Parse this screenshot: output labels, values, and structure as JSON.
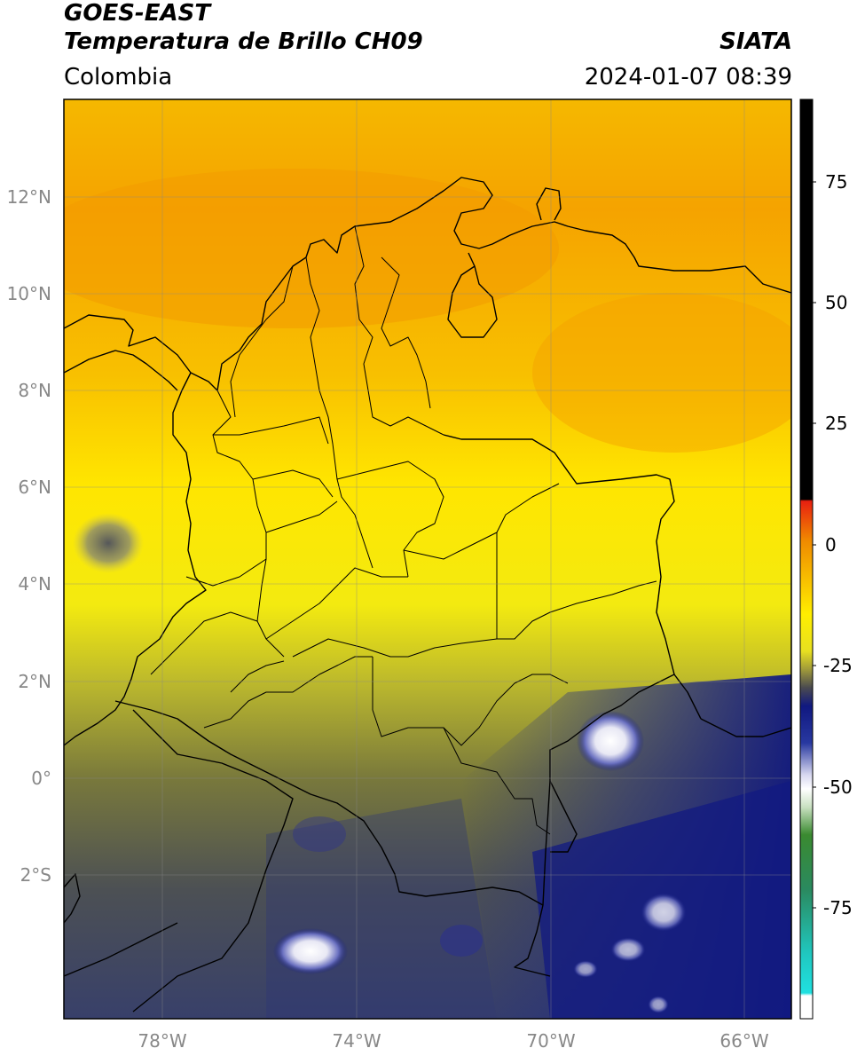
{
  "header": {
    "satellite": "GOES-EAST",
    "product": "Temperatura de Brillo CH09",
    "organization": "SIATA",
    "region": "Colombia",
    "timestamp": "2024-01-07 08:39"
  },
  "map": {
    "lat_ticks": [
      "12°N",
      "10°N",
      "8°N",
      "6°N",
      "4°N",
      "2°N",
      "0°",
      "2°S"
    ],
    "lon_ticks": [
      "78°W",
      "74°W",
      "70°W",
      "66°W"
    ],
    "extent": {
      "lon_min": -80.0,
      "lon_max": -65.0,
      "lat_min": -4.9,
      "lat_max": 14.0
    }
  },
  "colorbar": {
    "ticks": [
      "75",
      "50",
      "25",
      "0",
      "-25",
      "-50",
      "-75"
    ],
    "range": [
      -100,
      90
    ],
    "colors": {
      "warm_top": "#000000",
      "red": "#e82010",
      "orange": "#f08a00",
      "yellow": "#ffee00",
      "olive": "#7a7a3a",
      "navy": "#101880",
      "white": "#ffffff",
      "green": "#3a8a30",
      "cyan": "#20d8d0"
    }
  }
}
